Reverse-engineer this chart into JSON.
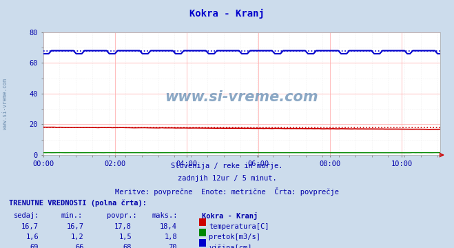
{
  "title": "Kokra - Kranj",
  "title_color": "#0000cc",
  "bg_color": "#ccdcec",
  "plot_bg_color": "#ffffff",
  "major_grid_color": "#ffaaaa",
  "minor_grid_color": "#dddddd",
  "xlabel_ticks": [
    "00:00",
    "02:00",
    "04:00",
    "06:00",
    "08:00",
    "10:00"
  ],
  "xlabel_tick_positions": [
    0,
    24,
    48,
    72,
    96,
    120
  ],
  "ylim": [
    0,
    80
  ],
  "yticks": [
    0,
    20,
    40,
    60,
    80
  ],
  "xlim": [
    0,
    133
  ],
  "n_points": 145,
  "temp_start": 18.1,
  "temp_end": 16.7,
  "temp_avg": 17.8,
  "temp_color": "#cc0000",
  "pretok_val": 1.5,
  "pretok_color": "#008800",
  "visina_high": 68.0,
  "visina_low": 66.0,
  "visina_avg": 68.0,
  "visina_color": "#0000cc",
  "subtitle1": "Slovenija / reke in morje.",
  "subtitle2": "zadnjih 12ur / 5 minut.",
  "subtitle3": "Meritve: povprečne  Enote: metrične  Črta: povprečje",
  "text_color": "#0000aa",
  "table_header": "TRENUTNE VREDNOSTI (polna črta):",
  "col_headers": [
    "sedaj:",
    "min.:",
    "povpr.:",
    "maks.:",
    "Kokra - Kranj"
  ],
  "row1": [
    "16,7",
    "16,7",
    "17,8",
    "18,4"
  ],
  "row2": [
    "1,6",
    "1,2",
    "1,5",
    "1,8"
  ],
  "row3": [
    "69",
    "66",
    "68",
    "70"
  ],
  "legend_labels": [
    "temperatura[C]",
    "pretok[m3/s]",
    "višina[cm]"
  ],
  "legend_colors": [
    "#cc0000",
    "#008800",
    "#0000cc"
  ],
  "watermark": "www.si-vreme.com",
  "watermark_color": "#7799bb",
  "left_watermark": "www.si-vreme.com",
  "left_watermark_color": "#6688aa"
}
